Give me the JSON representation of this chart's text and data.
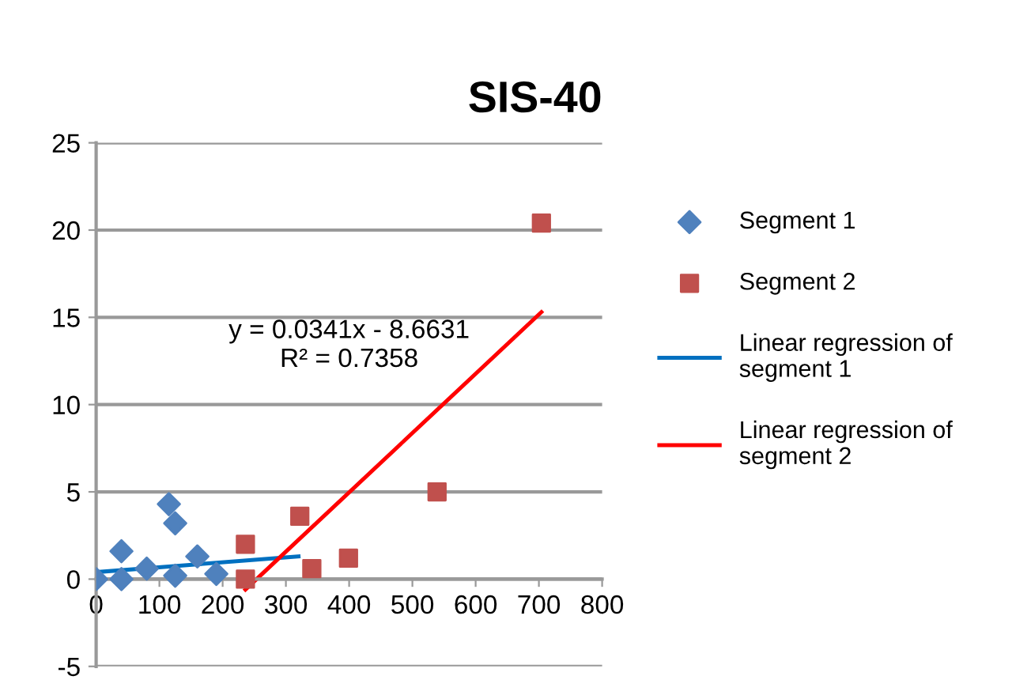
{
  "chart_data": {
    "type": "scatter",
    "title": "SIS-40",
    "series": [
      {
        "name": "Segment 1",
        "marker": "diamond",
        "color": "#4f81bd",
        "x": [
          0,
          40,
          40,
          80,
          115,
          125,
          125,
          160,
          190
        ],
        "values": [
          0,
          1.6,
          0,
          0.6,
          4.3,
          3.2,
          0.2,
          1.3,
          0.3
        ]
      },
      {
        "name": "Segment 2",
        "marker": "square",
        "color": "#c0504d",
        "x": [
          236,
          236,
          322,
          341,
          399,
          539,
          704
        ],
        "values": [
          2.0,
          0,
          3.6,
          0.6,
          1.2,
          5.0,
          20.4
        ]
      },
      {
        "name": "Linear regression of segment 1",
        "type": "line",
        "marker": "none",
        "color": "#0070c0",
        "x": [
          0,
          320
        ],
        "values": [
          0.4,
          1.3
        ]
      },
      {
        "name": "Linear regression of segment 2",
        "type": "line",
        "marker": "none",
        "color": "#ff0000",
        "x": [
          236,
          704
        ],
        "values": [
          -0.6,
          15.3
        ]
      }
    ],
    "annotations": [
      "y = 0.0341x - 8.6631",
      "R² = 0.7358"
    ],
    "xlim": [
      0,
      800
    ],
    "xticks": [
      0,
      100,
      200,
      300,
      400,
      500,
      600,
      700,
      800
    ],
    "ylim": [
      -5,
      25
    ],
    "yticks": [
      -5,
      0,
      5,
      10,
      15,
      20,
      25
    ],
    "grid": "y",
    "legend": "right"
  }
}
